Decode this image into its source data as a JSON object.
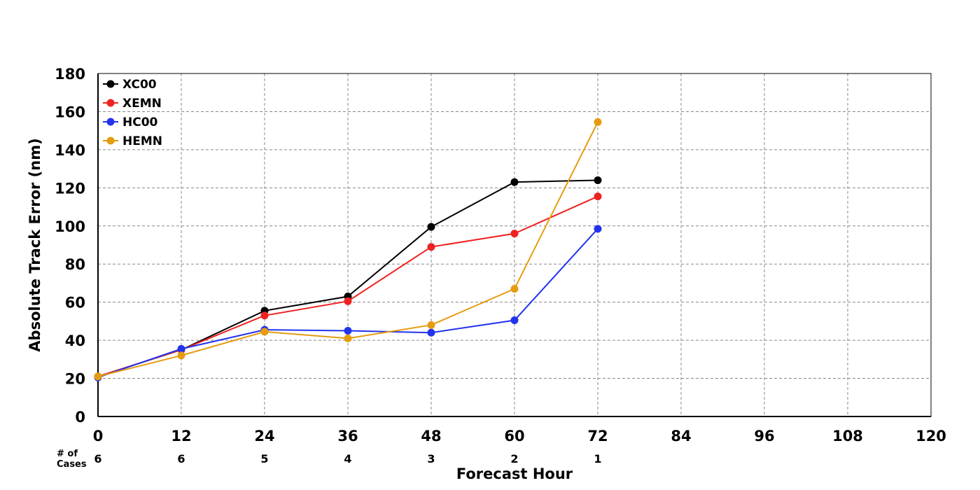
{
  "chart_data": {
    "type": "line",
    "xlabel": "Forecast Hour",
    "ylabel": "Absolute Track Error (nm)",
    "xlim": [
      0,
      120
    ],
    "ylim": [
      0,
      180
    ],
    "x_ticks": [
      0,
      12,
      24,
      36,
      48,
      60,
      72,
      84,
      96,
      108,
      120
    ],
    "y_ticks": [
      0,
      20,
      40,
      60,
      80,
      100,
      120,
      140,
      160,
      180
    ],
    "grid": true,
    "legend_position": "top-left",
    "x": [
      0,
      12,
      24,
      36,
      48,
      60,
      72
    ],
    "series": [
      {
        "name": "XC00",
        "color": "#000000",
        "values": [
          21,
          35,
          55.5,
          63,
          99.5,
          123,
          124
        ]
      },
      {
        "name": "XEMN",
        "color": "#ee2222",
        "values": [
          21,
          35,
          53,
          60.5,
          89,
          96,
          115.5
        ]
      },
      {
        "name": "HC00",
        "color": "#2233ee",
        "values": [
          20.5,
          35.5,
          45.5,
          45,
          44,
          50.5,
          98.5
        ]
      },
      {
        "name": "HEMN",
        "color": "#e69c10",
        "values": [
          21,
          32,
          44.5,
          41,
          48,
          67,
          154.5
        ]
      }
    ],
    "cases": {
      "label": "# of\nCases",
      "label_lines": [
        "# of",
        "Cases"
      ],
      "x": [
        0,
        12,
        24,
        36,
        48,
        60,
        72
      ],
      "values": [
        6,
        6,
        5,
        4,
        3,
        2,
        1
      ]
    }
  }
}
